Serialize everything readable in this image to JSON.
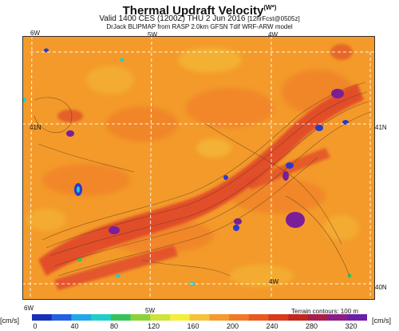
{
  "title": "Thermal Updraft Velocity",
  "title_superscript": "(W*)",
  "subtitle_line1_main": "Valid 1400 CES (1200Z) THU 2 Jun 2016",
  "subtitle_line1_small": "[12hrFcst@0505z]",
  "subtitle_line2": "DrJack BLIPMAP from RASP 2.0km GFSN Tdif WRF-ARW model",
  "grid_labels": {
    "lon_top_6w": "6W",
    "lon_top_5w": "5W",
    "lon_top_4w": "4W",
    "lon_bottom_6w": "6W",
    "lon_bottom_5w": "5W",
    "lon_inner_4w": "4W",
    "lat_left_41n": "41N",
    "lat_right_41n": "41N",
    "lat_right_40n": "40N"
  },
  "terrain_note": "Terrain contours: 100 m",
  "units_left": "[cm/s]",
  "units_right": "[cm/s]",
  "colorbar": {
    "ticks": [
      "0",
      "40",
      "80",
      "120",
      "160",
      "200",
      "240",
      "280",
      "320"
    ],
    "colors": [
      "#1a2fb8",
      "#2461e0",
      "#21a8e6",
      "#1ecfc9",
      "#36c45a",
      "#8cd23a",
      "#cfe33a",
      "#f5ee3a",
      "#f5c238",
      "#f59a2e",
      "#f07a28",
      "#e85a22",
      "#d93a1e",
      "#c2261e",
      "#a81e4a",
      "#8a1e86",
      "#6a1fa8"
    ]
  },
  "colors": {
    "background_field": "#f39a2a",
    "warm_field": "#f0782a",
    "hot_field": "#e0462a",
    "peak_field": "#7a1e9a",
    "cool_field": "#f3c23a"
  }
}
